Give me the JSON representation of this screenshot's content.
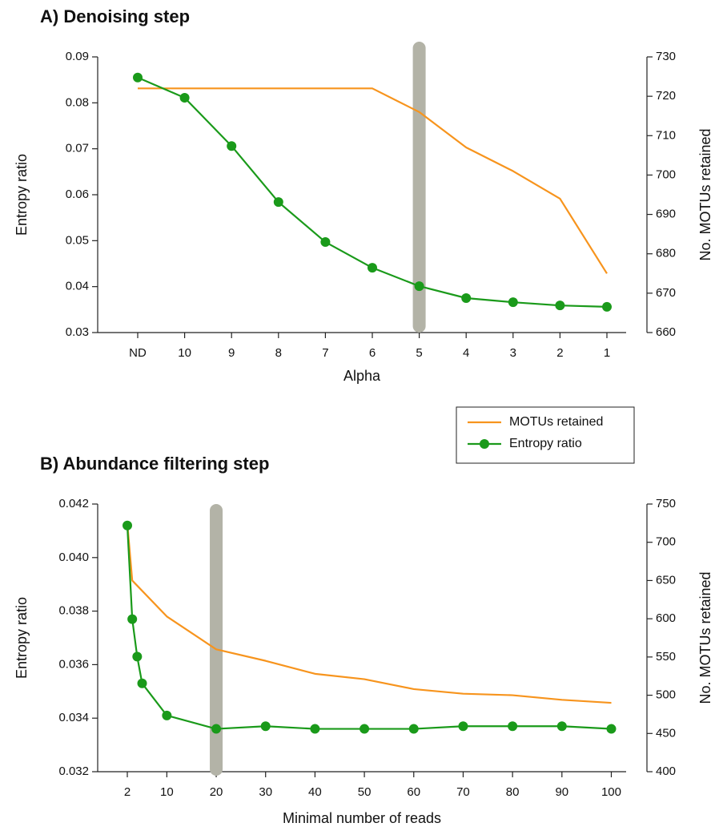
{
  "chart_data": [
    {
      "type": "line",
      "title": "A) Denoising step",
      "xlabel": "Alpha",
      "ylabel": "Entropy ratio",
      "y2label": "No. MOTUs retained",
      "categories": [
        "ND",
        "10",
        "9",
        "8",
        "7",
        "6",
        "5",
        "4",
        "3",
        "2",
        "1"
      ],
      "highlight": "5",
      "ylim": [
        0.03,
        0.09
      ],
      "yticks": [
        0.03,
        0.04,
        0.05,
        0.06,
        0.07,
        0.08,
        0.09
      ],
      "y2lim": [
        660,
        730
      ],
      "y2ticks": [
        660,
        670,
        680,
        690,
        700,
        710,
        720,
        730
      ],
      "series": [
        {
          "color": "#f7941d",
          "axis": "y2",
          "values": [
            722,
            722,
            722,
            722,
            722,
            722,
            716,
            707,
            701,
            694,
            675
          ]
        },
        {
          "color": "#1a9a1a",
          "axis": "y",
          "marker": "circle",
          "values": [
            0.0855,
            0.0811,
            0.0706,
            0.0584,
            0.0497,
            0.0441,
            0.0401,
            0.0375,
            0.0366,
            0.0359,
            0.0356
          ]
        }
      ]
    },
    {
      "type": "line",
      "title": "B) Abundance filtering step",
      "xlabel": "Minimal number of reads",
      "ylabel": "Entropy ratio",
      "y2label": "No. MOTUs retained",
      "highlight": 20,
      "legend": "outside-top-right",
      "xlim": [
        -4,
        103
      ],
      "xticks": [
        2,
        10,
        20,
        30,
        40,
        50,
        60,
        70,
        80,
        90,
        100
      ],
      "ylim": [
        0.032,
        0.042
      ],
      "yticks": [
        0.032,
        0.034,
        0.036,
        0.038,
        {
          "value": 0.04,
          "label": "0.040"
        },
        0.042
      ],
      "y2lim": [
        400,
        750
      ],
      "y2ticks": [
        400,
        450,
        500,
        550,
        600,
        650,
        700,
        750
      ],
      "series": [
        {
          "name": "MOTUs retained",
          "color": "#f7941d",
          "axis": "y2",
          "x": [
            2,
            3,
            10,
            20,
            30,
            40,
            50,
            60,
            70,
            80,
            90,
            100
          ],
          "values": [
            725,
            650,
            603,
            560,
            545,
            528,
            521,
            508,
            502,
            500,
            494,
            490
          ]
        },
        {
          "name": "Entropy ratio",
          "color": "#1a9a1a",
          "axis": "y",
          "marker": "circle",
          "x": [
            2,
            3,
            4,
            5,
            10,
            20,
            30,
            40,
            50,
            60,
            70,
            80,
            90,
            100
          ],
          "values": [
            0.0412,
            0.0377,
            0.0363,
            0.0353,
            0.0341,
            0.0336,
            0.0337,
            0.0336,
            0.0336,
            0.0336,
            0.0337,
            0.0337,
            0.0337,
            0.0336
          ]
        }
      ]
    }
  ]
}
